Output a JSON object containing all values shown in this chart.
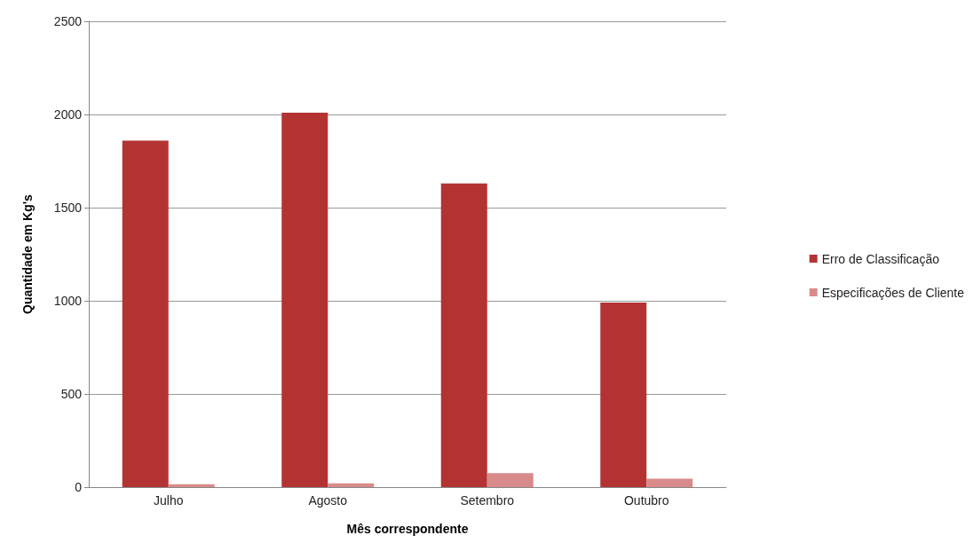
{
  "chart_data": {
    "type": "bar",
    "xlabel": "Mês correspondente",
    "ylabel": "Quantidade em Kg's",
    "categories": [
      "Julho",
      "Agosto",
      "Setembro",
      "Outubro"
    ],
    "series": [
      {
        "name": "Erro de Classificação",
        "color": "#b33333",
        "values": [
          1860,
          2010,
          1630,
          990
        ]
      },
      {
        "name": "Especificações de Cliente",
        "color": "#d98a8a",
        "values": [
          15,
          20,
          75,
          45
        ]
      }
    ],
    "ylim": [
      0,
      2500
    ],
    "yticks": [
      0,
      500,
      1000,
      1500,
      2000,
      2500
    ],
    "grid": "y",
    "legend": "right"
  }
}
